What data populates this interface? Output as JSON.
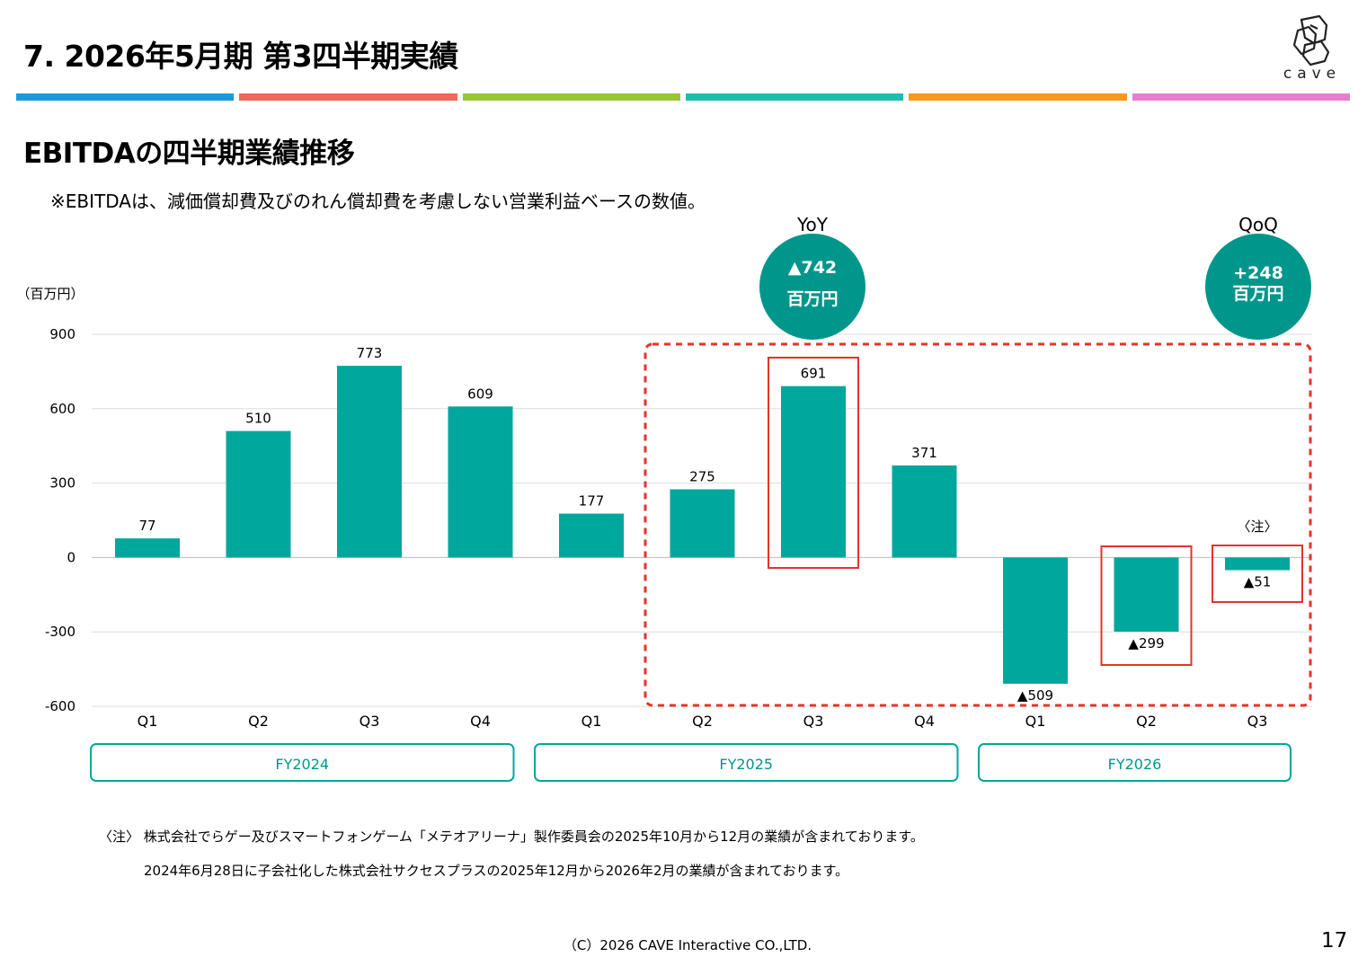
{
  "header": {
    "title": "7.  2026年5月期  第3四半期実績",
    "logo_text": "cave",
    "stripe_colors": [
      "#1a9bd7",
      "#f2675a",
      "#9ac43a",
      "#1bbfb0",
      "#f59a1a",
      "#e67ed0"
    ]
  },
  "section": {
    "title": "EBITDAの四半期業績推移",
    "note": "※EBITDAは、減価償却費及びのれん償却費を考慮しない営業利益ベースの数値。"
  },
  "chart_data": {
    "type": "bar",
    "unit_label": "（百万円）",
    "ylim": [
      -600,
      900
    ],
    "yticks": [
      900,
      600,
      300,
      0,
      -300,
      -600
    ],
    "grid": true,
    "bar_color": "#00a79d",
    "categories": [
      "Q1",
      "Q2",
      "Q3",
      "Q4",
      "Q1",
      "Q2",
      "Q3",
      "Q4",
      "Q1",
      "Q2",
      "Q3"
    ],
    "values": [
      77,
      510,
      773,
      609,
      177,
      275,
      691,
      371,
      -509,
      -299,
      -51
    ],
    "value_labels": [
      "77",
      "510",
      "773",
      "609",
      "177",
      "275",
      "691",
      "371",
      "▲509",
      "▲299",
      "▲51"
    ],
    "fiscal_groups": [
      {
        "label": "FY2024",
        "from": 0,
        "to": 3
      },
      {
        "label": "FY2025",
        "from": 4,
        "to": 7
      },
      {
        "label": "FY2026",
        "from": 8,
        "to": 10
      }
    ],
    "annotation_note": "〈注〉",
    "callouts": {
      "yoy": {
        "label": "YoY",
        "value": "▲742",
        "unit": "百万円"
      },
      "qoq": {
        "label": "QoQ",
        "value": "+248",
        "unit": "百万円"
      }
    },
    "callout_color": "#00968c",
    "highlight_color": "#e5332a"
  },
  "footer": {
    "footnote_line1": "〈注〉 株式会社でらゲー及びスマートフォンゲーム「メテオアリーナ」製作委員会の2025年10月から12月の業績が含まれております。",
    "footnote_line2": "2024年6月28日に子会社化した株式会社サクセスプラスの2025年12月から2026年2月の業績が含まれております。",
    "copyright": "（C）2026 CAVE Interactive CO.,LTD.",
    "page_number": "17"
  }
}
